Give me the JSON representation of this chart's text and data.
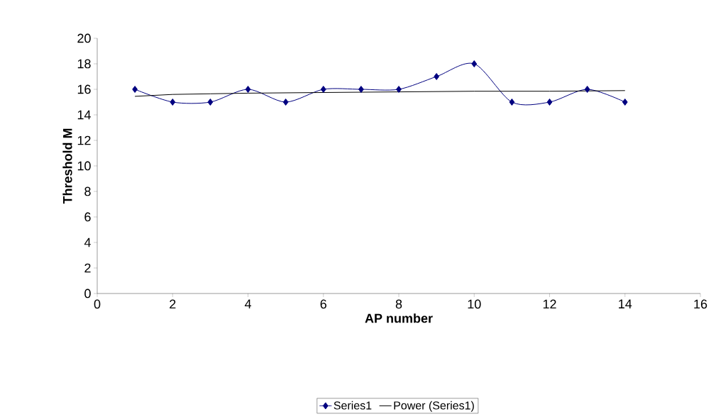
{
  "chart_data": {
    "type": "line",
    "xlabel": "AP number",
    "ylabel": "Threshold M",
    "xlim": [
      0,
      16
    ],
    "xticks": [
      0,
      2,
      4,
      6,
      8,
      10,
      12,
      14,
      16
    ],
    "ylim": [
      0,
      20
    ],
    "yticks": [
      0,
      2,
      4,
      6,
      8,
      10,
      12,
      14,
      16,
      18,
      20
    ],
    "grid": false,
    "legend": "bottom",
    "series": [
      {
        "name": "Series1",
        "color": "#000080",
        "marker": "diamond",
        "x": [
          1,
          2,
          3,
          4,
          5,
          6,
          7,
          8,
          9,
          10,
          11,
          12,
          13,
          14
        ],
        "values": [
          16,
          15,
          15,
          16,
          15,
          16,
          16,
          16,
          17,
          18,
          15,
          15,
          16,
          15
        ]
      },
      {
        "name": "Power (Series1)",
        "color": "#000000",
        "marker": "none",
        "x": [
          1,
          2,
          3,
          4,
          6,
          8,
          10,
          12,
          14
        ],
        "values": [
          15.45,
          15.6,
          15.65,
          15.7,
          15.75,
          15.8,
          15.85,
          15.85,
          15.9
        ]
      }
    ]
  }
}
